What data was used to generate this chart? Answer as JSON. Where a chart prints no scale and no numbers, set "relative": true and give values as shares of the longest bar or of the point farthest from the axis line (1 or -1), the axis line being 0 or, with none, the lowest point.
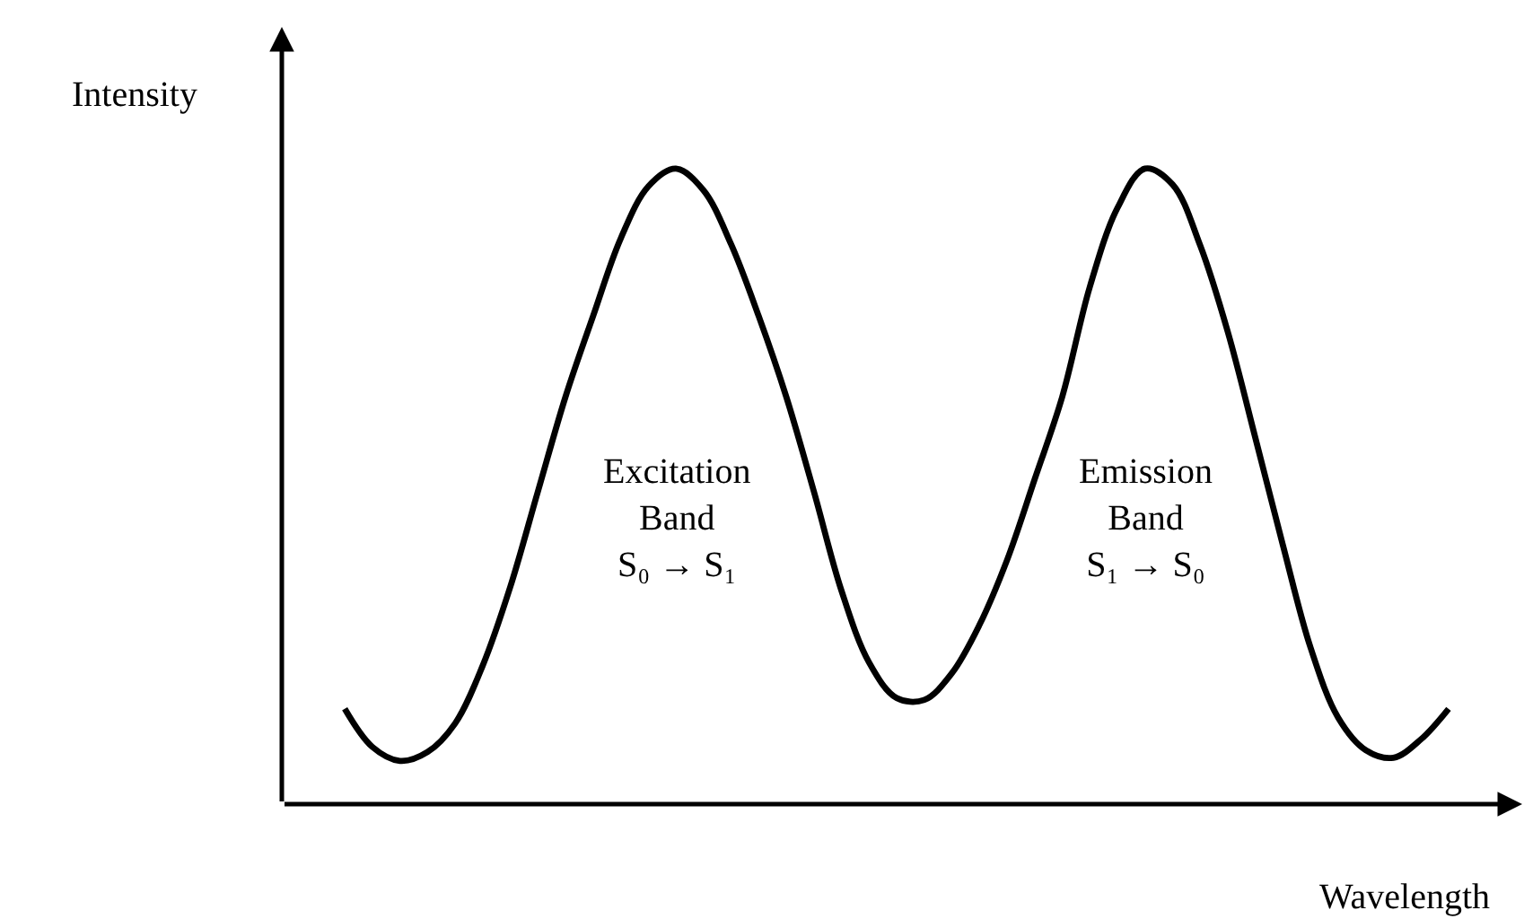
{
  "chart_data": {
    "type": "line",
    "relative": true,
    "xlabel": "Wavelength",
    "ylabel": "Intensity",
    "marker": "none",
    "categories": [
      null,
      null,
      null,
      null,
      null,
      null,
      null,
      null,
      null,
      null,
      null,
      null,
      null,
      null,
      null,
      null,
      null,
      null,
      null,
      null,
      null,
      null,
      null,
      null,
      null,
      null,
      null,
      null,
      null,
      null,
      null,
      null,
      null,
      null,
      null,
      null,
      null,
      null,
      null,
      null,
      null
    ],
    "series": [
      {
        "color": "#000000",
        "values": [
          0.15,
          0.09,
          0.068,
          0.082,
          0.127,
          0.218,
          0.342,
          0.492,
          0.641,
          0.768,
          0.89,
          0.972,
          1.0,
          0.966,
          0.881,
          0.768,
          0.641,
          0.492,
          0.336,
          0.223,
          0.167,
          0.164,
          0.206,
          0.282,
          0.384,
          0.511,
          0.641,
          0.814,
          0.938,
          1.0,
          0.975,
          0.879,
          0.743,
          0.576,
          0.407,
          0.246,
          0.136,
          0.085,
          0.073,
          0.102,
          0.15
        ]
      }
    ],
    "annotations": [
      "Excitation\nBand\nS₀ → S₁",
      "Emission\nBand\nS₁ → S₀"
    ]
  }
}
